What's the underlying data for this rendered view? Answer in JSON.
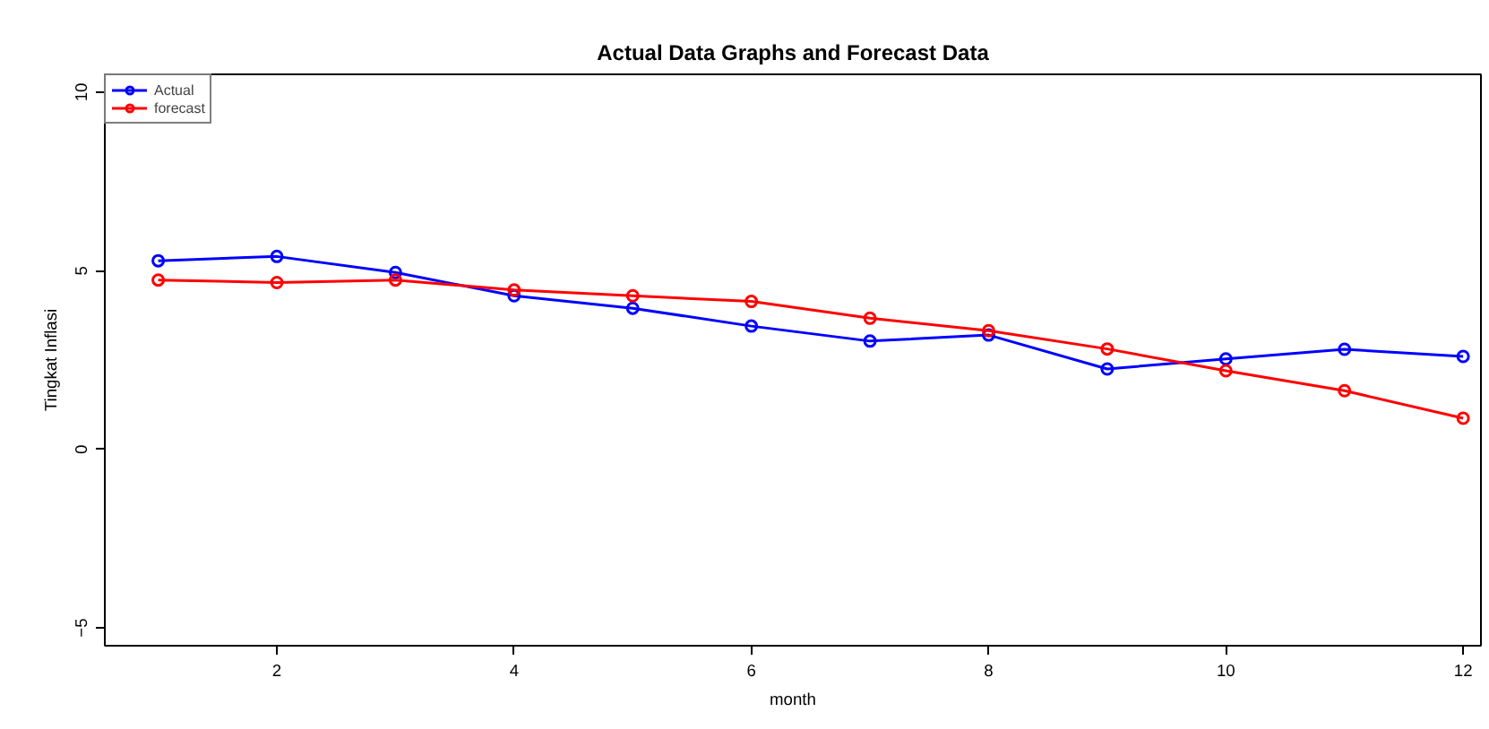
{
  "chart_data": {
    "type": "line",
    "title": "Actual Data Graphs and Forecast Data",
    "xlabel": "month",
    "ylabel": "Tingkat Inflasi",
    "x": [
      1,
      2,
      3,
      4,
      5,
      6,
      7,
      8,
      9,
      10,
      11,
      12
    ],
    "series": [
      {
        "name": "Actual",
        "color": "#0000ff",
        "values": [
          5.28,
          5.4,
          4.95,
          4.3,
          3.95,
          3.45,
          3.03,
          3.2,
          2.25,
          2.53,
          2.8,
          2.6
        ]
      },
      {
        "name": "forecast",
        "color": "#ff0000",
        "values": [
          4.74,
          4.67,
          4.74,
          4.46,
          4.3,
          4.14,
          3.67,
          3.32,
          2.81,
          2.2,
          1.64,
          0.87
        ]
      }
    ],
    "xlim": [
      0.55,
      12.15
    ],
    "ylim": [
      -5.5,
      10.5
    ],
    "xticks": [
      2,
      4,
      6,
      8,
      10,
      12
    ],
    "yticks": [
      -5,
      0,
      5,
      10
    ],
    "grid": false,
    "legend": "top left",
    "marker": "circle",
    "line_style": "solid"
  }
}
